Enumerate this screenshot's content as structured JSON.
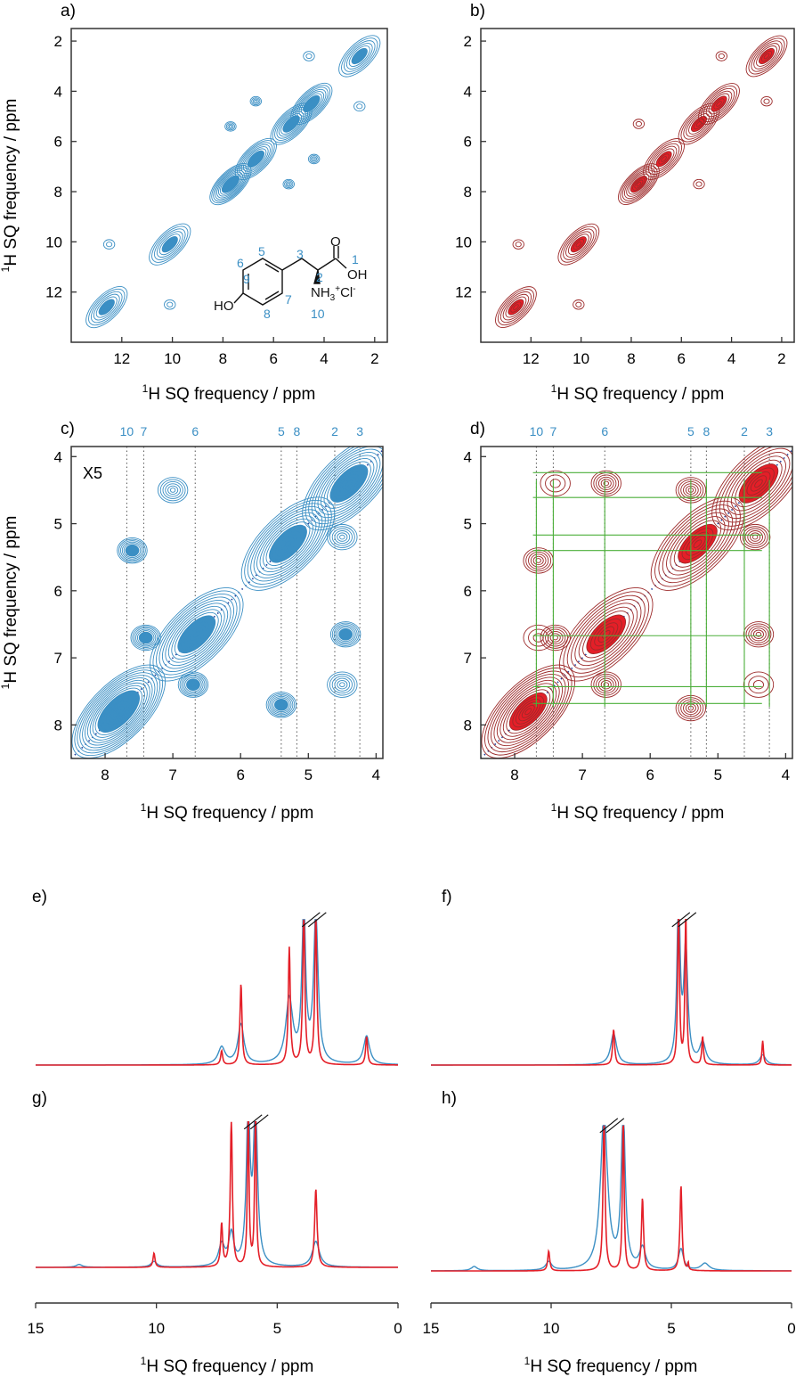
{
  "figure": {
    "colors": {
      "blue": "#3b8fc4",
      "red": "#e41f28",
      "darkred": "#9c2a2a",
      "green": "#4caf3a",
      "axis": "#333333",
      "dots": "#555555",
      "diag": "#1f3d9a"
    }
  },
  "chart_data": [
    {
      "panel": "a)",
      "type": "heatmap",
      "style": "contour",
      "color": "blue",
      "xlabel_sup": "1",
      "xlabel": "H SQ frequency / ppm",
      "ylabel_sup": "1",
      "ylabel": "H SQ frequency / ppm",
      "xlim": [
        14,
        1.5
      ],
      "ylim": [
        1.5,
        14
      ],
      "xticks": [
        12,
        10,
        8,
        6,
        4,
        2
      ],
      "yticks": [
        2,
        4,
        6,
        8,
        10,
        12
      ],
      "peaks": [
        {
          "x": 12.6,
          "y": 12.6,
          "level": 4
        },
        {
          "x": 10.1,
          "y": 10.1,
          "level": 4
        },
        {
          "x": 7.7,
          "y": 7.7,
          "level": 6
        },
        {
          "x": 6.7,
          "y": 6.7,
          "level": 5
        },
        {
          "x": 5.3,
          "y": 5.3,
          "level": 5
        },
        {
          "x": 4.5,
          "y": 4.5,
          "level": 5
        },
        {
          "x": 2.6,
          "y": 2.6,
          "level": 4
        },
        {
          "x": 12.5,
          "y": 10.1,
          "level": 1
        },
        {
          "x": 10.1,
          "y": 12.5,
          "level": 1
        },
        {
          "x": 7.7,
          "y": 5.4,
          "level": 2
        },
        {
          "x": 5.4,
          "y": 7.7,
          "level": 2
        },
        {
          "x": 4.6,
          "y": 2.6,
          "level": 1
        },
        {
          "x": 2.6,
          "y": 4.6,
          "level": 1
        },
        {
          "x": 6.7,
          "y": 4.4,
          "level": 2
        },
        {
          "x": 4.4,
          "y": 6.7,
          "level": 2
        }
      ],
      "molecule": {
        "atom_numbers": [
          "1",
          "2",
          "3",
          "5",
          "6",
          "7",
          "8",
          "9",
          "10"
        ],
        "OH_acid": "OH",
        "O_carbonyl": "O",
        "HO": "HO",
        "amine": "NH",
        "amine_sub": "3",
        "amine_sup": "+",
        "chloride": "Cl",
        "chloride_sup": "-"
      }
    },
    {
      "panel": "b)",
      "type": "heatmap",
      "style": "contour",
      "color": "red",
      "xlabel_sup": "1",
      "xlabel": "H SQ frequency / ppm",
      "xlim": [
        14,
        1.5
      ],
      "ylim": [
        1.5,
        14
      ],
      "xticks": [
        12,
        10,
        8,
        6,
        4,
        2
      ],
      "yticks": [
        2,
        4,
        6,
        8,
        10,
        12
      ],
      "peaks": [
        {
          "x": 12.6,
          "y": 12.6,
          "level": 4
        },
        {
          "x": 10.1,
          "y": 10.1,
          "level": 4
        },
        {
          "x": 7.7,
          "y": 7.7,
          "level": 5
        },
        {
          "x": 6.7,
          "y": 6.7,
          "level": 4
        },
        {
          "x": 5.3,
          "y": 5.3,
          "level": 4
        },
        {
          "x": 4.5,
          "y": 4.5,
          "level": 4
        },
        {
          "x": 2.6,
          "y": 2.6,
          "level": 4
        },
        {
          "x": 12.5,
          "y": 10.1,
          "level": 1
        },
        {
          "x": 10.1,
          "y": 12.5,
          "level": 1
        },
        {
          "x": 7.7,
          "y": 5.3,
          "level": 1
        },
        {
          "x": 5.3,
          "y": 7.7,
          "level": 1
        },
        {
          "x": 4.4,
          "y": 2.6,
          "level": 1
        },
        {
          "x": 2.6,
          "y": 4.4,
          "level": 1
        }
      ]
    },
    {
      "panel": "c)",
      "type": "heatmap",
      "style": "contour",
      "color": "blue",
      "annotation": "X5",
      "xlabel_sup": "1",
      "xlabel": "H SQ frequency / ppm",
      "ylabel_sup": "1",
      "ylabel": "H SQ frequency / ppm",
      "xlim": [
        8.5,
        3.9
      ],
      "ylim": [
        3.85,
        8.5
      ],
      "xticks": [
        8,
        7,
        6,
        5,
        4
      ],
      "yticks": [
        4,
        5,
        6,
        7,
        8
      ],
      "site_labels": [
        {
          "label": "10",
          "ppm": 7.68
        },
        {
          "label": "7",
          "ppm": 7.43
        },
        {
          "label": "6",
          "ppm": 6.67
        },
        {
          "label": "5",
          "ppm": 5.4
        },
        {
          "label": "8",
          "ppm": 5.17
        },
        {
          "label": "2",
          "ppm": 4.61
        },
        {
          "label": "3",
          "ppm": 4.24
        }
      ],
      "peaks": [
        {
          "x": 7.8,
          "y": 7.8,
          "level": 6
        },
        {
          "x": 6.65,
          "y": 6.65,
          "level": 5
        },
        {
          "x": 5.3,
          "y": 5.3,
          "level": 5
        },
        {
          "x": 4.4,
          "y": 4.4,
          "level": 5
        },
        {
          "x": 7.6,
          "y": 5.4,
          "level": 3
        },
        {
          "x": 7.0,
          "y": 4.5,
          "level": 2
        },
        {
          "x": 5.4,
          "y": 7.7,
          "level": 3
        },
        {
          "x": 4.5,
          "y": 7.4,
          "level": 2
        },
        {
          "x": 7.4,
          "y": 6.7,
          "level": 3
        },
        {
          "x": 6.7,
          "y": 7.4,
          "level": 3
        },
        {
          "x": 4.45,
          "y": 6.65,
          "level": 3
        },
        {
          "x": 4.5,
          "y": 5.2,
          "level": 2
        }
      ]
    },
    {
      "panel": "d)",
      "type": "heatmap",
      "style": "contour",
      "color": "red",
      "xlabel_sup": "1",
      "xlabel": "H SQ frequency / ppm",
      "xlim": [
        8.5,
        3.9
      ],
      "ylim": [
        3.85,
        8.5
      ],
      "xticks": [
        8,
        7,
        6,
        5,
        4
      ],
      "yticks": [
        4,
        5,
        6,
        7,
        8
      ],
      "site_labels": [
        {
          "label": "10",
          "ppm": 7.68
        },
        {
          "label": "7",
          "ppm": 7.43
        },
        {
          "label": "6",
          "ppm": 6.67
        },
        {
          "label": "5",
          "ppm": 5.4
        },
        {
          "label": "8",
          "ppm": 5.17
        },
        {
          "label": "2",
          "ppm": 4.61
        },
        {
          "label": "3",
          "ppm": 4.24
        }
      ],
      "peaks": [
        {
          "x": 7.8,
          "y": 7.8,
          "level": 5
        },
        {
          "x": 6.65,
          "y": 6.65,
          "level": 4
        },
        {
          "x": 5.3,
          "y": 5.3,
          "level": 4
        },
        {
          "x": 4.4,
          "y": 4.4,
          "level": 4
        },
        {
          "x": 7.4,
          "y": 4.4,
          "level": 1
        },
        {
          "x": 6.65,
          "y": 4.4,
          "level": 2
        },
        {
          "x": 5.4,
          "y": 4.5,
          "level": 2
        },
        {
          "x": 7.65,
          "y": 5.55,
          "level": 2
        },
        {
          "x": 4.45,
          "y": 5.2,
          "level": 2
        },
        {
          "x": 7.4,
          "y": 6.7,
          "level": 2
        },
        {
          "x": 7.65,
          "y": 6.7,
          "level": 1
        },
        {
          "x": 4.4,
          "y": 6.65,
          "level": 2
        },
        {
          "x": 6.65,
          "y": 7.4,
          "level": 2
        },
        {
          "x": 5.4,
          "y": 7.75,
          "level": 2
        },
        {
          "x": 4.4,
          "y": 7.4,
          "level": 1
        }
      ],
      "green_lines_ppm": [
        7.68,
        7.43,
        6.67,
        5.4,
        5.17,
        4.61,
        4.24
      ]
    },
    {
      "panel": "e)",
      "type": "line",
      "xlim": [
        15,
        0
      ],
      "series": [
        {
          "color": "blue",
          "peaks": [
            {
              "x": 7.3,
              "h": 0.12,
              "w": 0.35
            },
            {
              "x": 6.5,
              "h": 0.28,
              "w": 0.3
            },
            {
              "x": 4.5,
              "h": 0.45,
              "w": 0.35
            },
            {
              "x": 3.9,
              "h": 1.1,
              "w": 0.18
            },
            {
              "x": 3.4,
              "h": 1.05,
              "w": 0.22
            },
            {
              "x": 1.3,
              "h": 0.2,
              "w": 0.3
            }
          ]
        },
        {
          "color": "red",
          "peaks": [
            {
              "x": 7.3,
              "h": 0.1,
              "w": 0.1
            },
            {
              "x": 6.5,
              "h": 0.57,
              "w": 0.1
            },
            {
              "x": 4.5,
              "h": 0.82,
              "w": 0.1
            },
            {
              "x": 3.9,
              "h": 1.1,
              "w": 0.1
            },
            {
              "x": 3.4,
              "h": 1.05,
              "w": 0.1
            },
            {
              "x": 1.3,
              "h": 0.2,
              "w": 0.1
            }
          ]
        }
      ],
      "break_ppm": 3.6
    },
    {
      "panel": "f)",
      "type": "line",
      "xlim": [
        15,
        0
      ],
      "series": [
        {
          "color": "blue",
          "peaks": [
            {
              "x": 7.4,
              "h": 0.22,
              "w": 0.3
            },
            {
              "x": 4.7,
              "h": 1.2,
              "w": 0.15
            },
            {
              "x": 4.4,
              "h": 0.8,
              "w": 0.2
            },
            {
              "x": 3.7,
              "h": 0.15,
              "w": 0.3
            },
            {
              "x": 1.2,
              "h": 0.07,
              "w": 0.3
            }
          ]
        },
        {
          "color": "red",
          "peaks": [
            {
              "x": 7.4,
              "h": 0.25,
              "w": 0.1
            },
            {
              "x": 4.7,
              "h": 1.2,
              "w": 0.08
            },
            {
              "x": 4.4,
              "h": 1.1,
              "w": 0.08
            },
            {
              "x": 3.7,
              "h": 0.2,
              "w": 0.08
            },
            {
              "x": 1.2,
              "h": 0.17,
              "w": 0.08
            }
          ]
        }
      ],
      "break_ppm": 4.6
    },
    {
      "panel": "g)",
      "type": "line",
      "xlim": [
        15,
        0
      ],
      "xticks": [
        15,
        10,
        5,
        0
      ],
      "xlabel_sup": "1",
      "xlabel": "H SQ frequency / ppm",
      "series": [
        {
          "color": "blue",
          "peaks": [
            {
              "x": 13.2,
              "h": 0.02,
              "w": 0.3
            },
            {
              "x": 10.1,
              "h": 0.04,
              "w": 0.3
            },
            {
              "x": 7.3,
              "h": 0.15,
              "w": 0.3
            },
            {
              "x": 6.9,
              "h": 0.22,
              "w": 0.25
            },
            {
              "x": 6.2,
              "h": 1.1,
              "w": 0.18
            },
            {
              "x": 5.9,
              "h": 1.1,
              "w": 0.2
            },
            {
              "x": 3.4,
              "h": 0.18,
              "w": 0.35
            }
          ]
        },
        {
          "color": "red",
          "peaks": [
            {
              "x": 10.1,
              "h": 0.1,
              "w": 0.1
            },
            {
              "x": 7.3,
              "h": 0.3,
              "w": 0.1
            },
            {
              "x": 6.9,
              "h": 1.05,
              "w": 0.1
            },
            {
              "x": 6.2,
              "h": 1.1,
              "w": 0.08
            },
            {
              "x": 5.9,
              "h": 1.1,
              "w": 0.08
            },
            {
              "x": 3.4,
              "h": 0.55,
              "w": 0.12
            }
          ]
        }
      ],
      "break_ppm": 6.0
    },
    {
      "panel": "h)",
      "type": "line",
      "xlim": [
        15,
        0
      ],
      "xticks": [
        15,
        10,
        5,
        0
      ],
      "xlabel_sup": "1",
      "xlabel": "H SQ frequency / ppm",
      "series": [
        {
          "color": "blue",
          "peaks": [
            {
              "x": 13.2,
              "h": 0.03,
              "w": 0.3
            },
            {
              "x": 10.1,
              "h": 0.06,
              "w": 0.3
            },
            {
              "x": 7.8,
              "h": 1.1,
              "w": 0.35
            },
            {
              "x": 7.0,
              "h": 1.1,
              "w": 0.2
            },
            {
              "x": 6.2,
              "h": 0.15,
              "w": 0.3
            },
            {
              "x": 4.6,
              "h": 0.15,
              "w": 0.25
            },
            {
              "x": 3.6,
              "h": 0.05,
              "w": 0.4
            }
          ]
        },
        {
          "color": "red",
          "peaks": [
            {
              "x": 10.1,
              "h": 0.14,
              "w": 0.1
            },
            {
              "x": 7.8,
              "h": 1.1,
              "w": 0.1
            },
            {
              "x": 7.0,
              "h": 1.1,
              "w": 0.08
            },
            {
              "x": 6.2,
              "h": 0.51,
              "w": 0.1
            },
            {
              "x": 4.6,
              "h": 0.6,
              "w": 0.1
            },
            {
              "x": 4.3,
              "h": 0.05,
              "w": 0.05
            }
          ]
        }
      ],
      "break_ppm": 7.6
    }
  ]
}
